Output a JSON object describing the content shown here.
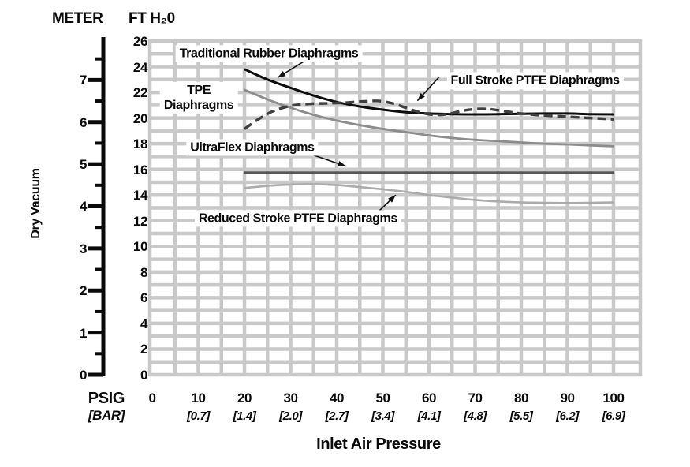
{
  "page": {
    "meter_header": "METER",
    "ft_header": "FT H₂0",
    "y_axis_title": "Dry Vacuum",
    "x_axis_title": "Inlet Air Pressure",
    "psig_caption": "PSIG",
    "bar_caption": "[BAR]"
  },
  "chart_data": {
    "type": "line",
    "title": "",
    "xlabel": "Inlet Air Pressure",
    "ylabel": "Dry Vacuum",
    "x_axis": {
      "primary_unit": "PSIG",
      "secondary_unit": "[BAR]",
      "range_psig": [
        0,
        105
      ],
      "ticks": [
        {
          "psig": "0",
          "bar": ""
        },
        {
          "psig": "10",
          "bar": "[0.7]"
        },
        {
          "psig": "20",
          "bar": "[1.4]"
        },
        {
          "psig": "30",
          "bar": "[2.0]"
        },
        {
          "psig": "40",
          "bar": "[2.7]"
        },
        {
          "psig": "50",
          "bar": "[3.4]"
        },
        {
          "psig": "60",
          "bar": "[4.1]"
        },
        {
          "psig": "70",
          "bar": "[4.8]"
        },
        {
          "psig": "80",
          "bar": "[5.5]"
        },
        {
          "psig": "90",
          "bar": "[6.2]"
        },
        {
          "psig": "100",
          "bar": "[6.9]"
        }
      ]
    },
    "y_axis": {
      "left_unit": "METER",
      "right_unit": "FT H₂0",
      "ft_range": [
        0,
        26
      ],
      "ft_ticks": [
        26,
        24,
        22,
        20,
        18,
        16,
        14,
        12,
        10,
        8,
        6,
        4,
        2,
        0
      ],
      "meter_ticks": [
        7,
        6,
        5,
        4,
        3,
        2,
        1,
        0
      ],
      "meter_minor_step": 0.5,
      "ft_per_meter": 3.2808
    },
    "grid": {
      "x_step_psig": 5,
      "y_step_ft": 1,
      "color": "#c9c9c9"
    },
    "series": [
      {
        "name": "Traditional Rubber Diaphragms",
        "line": "solid",
        "color": "#0d0d0d",
        "width": 3,
        "dash": "",
        "points": [
          [
            20,
            23.8
          ],
          [
            25,
            23.0
          ],
          [
            30,
            22.35
          ],
          [
            35,
            21.75
          ],
          [
            40,
            21.25
          ],
          [
            45,
            20.9
          ],
          [
            50,
            20.65
          ],
          [
            55,
            20.45
          ],
          [
            60,
            20.35
          ],
          [
            65,
            20.3
          ],
          [
            70,
            20.28
          ],
          [
            75,
            20.3
          ],
          [
            80,
            20.33
          ],
          [
            85,
            20.35
          ],
          [
            90,
            20.35
          ],
          [
            95,
            20.3
          ],
          [
            100,
            20.28
          ]
        ]
      },
      {
        "name": "TPE Diaphragms",
        "line": "solid",
        "color": "#8c8c8c",
        "width": 2.8,
        "dash": "",
        "points": [
          [
            20,
            22.2
          ],
          [
            25,
            21.45
          ],
          [
            30,
            20.8
          ],
          [
            35,
            20.25
          ],
          [
            40,
            19.8
          ],
          [
            45,
            19.45
          ],
          [
            50,
            19.15
          ],
          [
            55,
            18.9
          ],
          [
            60,
            18.65
          ],
          [
            65,
            18.45
          ],
          [
            70,
            18.3
          ],
          [
            75,
            18.2
          ],
          [
            80,
            18.1
          ],
          [
            85,
            18.0
          ],
          [
            90,
            17.95
          ],
          [
            95,
            17.87
          ],
          [
            100,
            17.8
          ]
        ]
      },
      {
        "name": "Full Stroke PTFE Diaphragms",
        "line": "dashed",
        "color": "#3f3f3f",
        "width": 3.4,
        "dash": "11,6",
        "points": [
          [
            20,
            19.15
          ],
          [
            23,
            19.9
          ],
          [
            26,
            20.5
          ],
          [
            30,
            20.95
          ],
          [
            34,
            21.1
          ],
          [
            38,
            21.15
          ],
          [
            42,
            21.2
          ],
          [
            46,
            21.3
          ],
          [
            49,
            21.33
          ],
          [
            52,
            21.15
          ],
          [
            55,
            20.8
          ],
          [
            58,
            20.45
          ],
          [
            61,
            20.25
          ],
          [
            64,
            20.3
          ],
          [
            67,
            20.55
          ],
          [
            70,
            20.7
          ],
          [
            73,
            20.7
          ],
          [
            76,
            20.55
          ],
          [
            80,
            20.35
          ],
          [
            85,
            20.2
          ],
          [
            90,
            20.1
          ],
          [
            95,
            20.0
          ],
          [
            100,
            19.9
          ]
        ]
      },
      {
        "name": "UltraFlex Diaphragms",
        "line": "solid",
        "color": "#565656",
        "width": 3,
        "dash": "",
        "points": [
          [
            20,
            15.75
          ],
          [
            40,
            15.75
          ],
          [
            60,
            15.75
          ],
          [
            80,
            15.75
          ],
          [
            100,
            15.75
          ]
        ]
      },
      {
        "name": "Reduced Stroke PTFE Diaphragms",
        "line": "solid",
        "color": "#ababab",
        "width": 2.6,
        "dash": "",
        "points": [
          [
            20,
            14.55
          ],
          [
            25,
            14.72
          ],
          [
            30,
            14.82
          ],
          [
            35,
            14.85
          ],
          [
            40,
            14.78
          ],
          [
            45,
            14.62
          ],
          [
            50,
            14.45
          ],
          [
            55,
            14.25
          ],
          [
            60,
            14.0
          ],
          [
            65,
            13.8
          ],
          [
            70,
            13.62
          ],
          [
            75,
            13.5
          ],
          [
            80,
            13.43
          ],
          [
            85,
            13.4
          ],
          [
            90,
            13.38
          ],
          [
            95,
            13.4
          ],
          [
            100,
            13.43
          ]
        ]
      }
    ],
    "annotations": [
      {
        "lines": [
          "Traditional Rubber Diaphragms"
        ],
        "cx": 25.3,
        "cy": 25.0,
        "arrow": {
          "x1": 33.3,
          "y1": 24.5,
          "x2": 27.2,
          "y2": 23.15
        }
      },
      {
        "lines": [
          "TPE",
          "Diaphragms"
        ],
        "cx": 10.1,
        "cy": 21.6,
        "arrow": {
          "x1": 13.8,
          "y1": 21.85,
          "x2": 18.4,
          "y2": 22.3
        }
      },
      {
        "lines": [
          "Full Stroke PTFE Diaphragms"
        ],
        "cx": 83.0,
        "cy": 22.9,
        "arrow": {
          "x1": 62.2,
          "y1": 23.2,
          "x2": 57.5,
          "y2": 21.35
        }
      },
      {
        "lines": [
          "UltraFlex Diaphragms"
        ],
        "cx": 21.7,
        "cy": 17.7,
        "arrow": {
          "x1": 35.0,
          "y1": 17.1,
          "x2": 42.0,
          "y2": 16.25
        }
      },
      {
        "lines": [
          "Reduced Stroke PTFE Diaphragms"
        ],
        "cx": 31.6,
        "cy": 12.2,
        "arrow": {
          "x1": 48.7,
          "y1": 12.6,
          "x2": 52.8,
          "y2": 14.0
        }
      }
    ]
  }
}
